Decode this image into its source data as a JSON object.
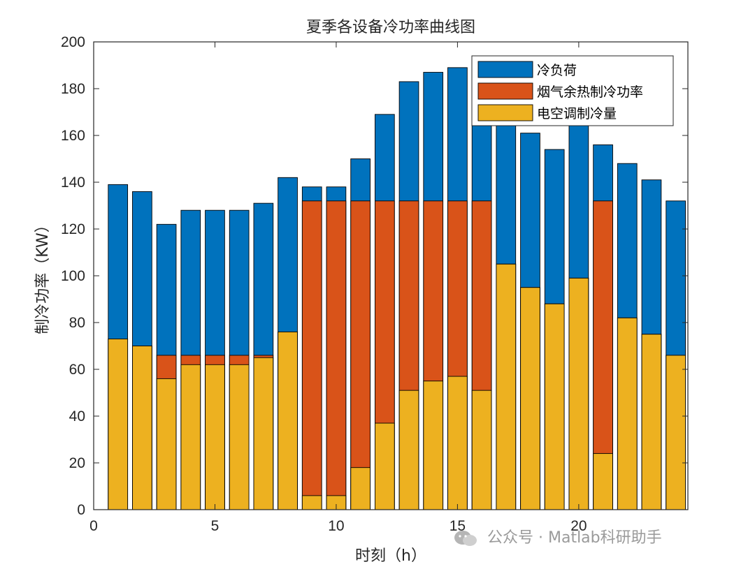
{
  "chart_data": {
    "type": "bar",
    "stacked": false,
    "title": "夏季各设备冷功率曲线图",
    "xlabel": "时刻（h）",
    "ylabel": "制冷功率（KW）",
    "xlim": [
      0,
      24.5
    ],
    "ylim": [
      0,
      200
    ],
    "xticks": [
      0,
      5,
      10,
      15,
      20
    ],
    "yticks": [
      0,
      20,
      40,
      60,
      80,
      100,
      120,
      140,
      160,
      180,
      200
    ],
    "x": [
      1,
      2,
      3,
      4,
      5,
      6,
      7,
      8,
      9,
      10,
      11,
      12,
      13,
      14,
      15,
      16,
      17,
      18,
      19,
      20,
      21,
      22,
      23,
      24
    ],
    "series": [
      {
        "name": "冷负荷",
        "color": "#0072BD",
        "values": [
          139,
          136,
          122,
          128,
          128,
          128,
          131,
          142,
          138,
          138,
          150,
          169,
          183,
          187,
          189,
          178,
          172,
          161,
          154,
          165,
          156,
          148,
          141,
          132
        ]
      },
      {
        "name": "烟气余热制冷功率",
        "color": "#D95319",
        "values": [
          73,
          70,
          66,
          66,
          66,
          66,
          66,
          76,
          132,
          132,
          132,
          132,
          132,
          132,
          132,
          132,
          105,
          95,
          88,
          99,
          132,
          82,
          75,
          66
        ]
      },
      {
        "name": "电空调制冷量",
        "color": "#EDB120",
        "values": [
          73,
          70,
          56,
          62,
          62,
          62,
          65,
          76,
          6,
          6,
          18,
          37,
          51,
          55,
          57,
          51,
          105,
          95,
          88,
          99,
          24,
          82,
          75,
          66
        ]
      }
    ],
    "legend_position": "top-right",
    "grid": false
  },
  "watermark": {
    "text": "公众号 · Matlab科研助手",
    "icon": "wechat-icon"
  }
}
